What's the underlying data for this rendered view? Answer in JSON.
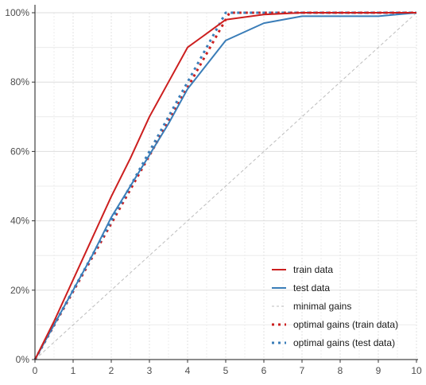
{
  "chart_data": {
    "type": "line",
    "title": "",
    "xlabel": "",
    "ylabel": "",
    "xlim": [
      0,
      10
    ],
    "ylim": [
      0,
      100
    ],
    "x_ticks": [
      "0",
      "1",
      "2",
      "3",
      "4",
      "5",
      "6",
      "7",
      "8",
      "9",
      "10"
    ],
    "y_ticks": [
      "0%",
      "20%",
      "40%",
      "60%",
      "80%",
      "100%"
    ],
    "grid": true,
    "legend_position": "bottom-right",
    "series": [
      {
        "name": "train data",
        "color": "#cc1f1f",
        "style": "solid",
        "x": [
          0,
          0.5,
          1,
          1.5,
          2,
          2.5,
          3,
          3.5,
          4,
          4.5,
          5,
          6,
          7,
          8,
          9,
          10
        ],
        "y": [
          0,
          11,
          23,
          35,
          47,
          58,
          70,
          80,
          90,
          94,
          98,
          99.5,
          100,
          100,
          100,
          100
        ]
      },
      {
        "name": "test data",
        "color": "#3a7db8",
        "style": "solid",
        "x": [
          0,
          0.5,
          1,
          1.5,
          2,
          2.5,
          3,
          3.5,
          4,
          4.5,
          5,
          6,
          7,
          8,
          9,
          10
        ],
        "y": [
          0,
          10,
          20,
          30,
          41,
          50,
          59,
          68,
          78,
          85,
          92,
          97,
          99,
          99,
          99,
          100
        ]
      },
      {
        "name": "minimal gains",
        "color": "#bdbdbd",
        "style": "dashed",
        "x": [
          0,
          10
        ],
        "y": [
          0,
          100
        ]
      },
      {
        "name": "optimal gains (train data)",
        "color": "#cc1f1f",
        "style": "dotted",
        "x": [
          0,
          5.1,
          10
        ],
        "y": [
          0,
          100,
          100
        ]
      },
      {
        "name": "optimal gains (test data)",
        "color": "#3a7db8",
        "style": "dotted",
        "x": [
          0,
          5,
          10
        ],
        "y": [
          0,
          100,
          100
        ]
      }
    ]
  }
}
